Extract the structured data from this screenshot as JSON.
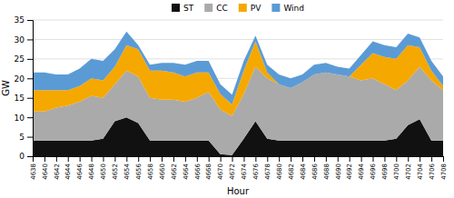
{
  "chart_data": {
    "type": "area",
    "stacked": true,
    "x": [
      4638,
      4640,
      4642,
      4644,
      4646,
      4648,
      4650,
      4652,
      4654,
      4656,
      4658,
      4660,
      4662,
      4664,
      4666,
      4668,
      4670,
      4672,
      4674,
      4676,
      4678,
      4680,
      4682,
      4684,
      4686,
      4688,
      4690,
      4692,
      4694,
      4696,
      4698,
      4700,
      4702,
      4704,
      4706,
      4708
    ],
    "series": [
      {
        "name": "ST",
        "color": "#111111",
        "values": [
          4.0,
          4.0,
          4.0,
          4.0,
          4.0,
          4.0,
          4.5,
          9.0,
          10.0,
          8.5,
          4.0,
          4.0,
          4.0,
          4.0,
          4.0,
          4.0,
          0.5,
          0.3,
          4.5,
          9.0,
          4.5,
          4.0,
          4.0,
          4.0,
          4.0,
          4.0,
          4.0,
          4.0,
          4.0,
          4.0,
          4.0,
          4.5,
          8.0,
          9.5,
          4.0,
          4.0
        ]
      },
      {
        "name": "CC",
        "color": "#aaaaaa",
        "values": [
          7.5,
          7.5,
          8.5,
          9.0,
          10.0,
          11.5,
          10.5,
          9.5,
          12.0,
          12.0,
          11.0,
          10.5,
          10.5,
          10.0,
          11.0,
          12.5,
          11.5,
          10.0,
          11.5,
          14.0,
          15.5,
          14.5,
          13.5,
          15.0,
          17.0,
          17.5,
          17.0,
          16.5,
          15.5,
          16.0,
          14.5,
          12.5,
          11.5,
          13.5,
          15.5,
          13.0
        ]
      },
      {
        "name": "PV",
        "color": "#f5a800",
        "values": [
          5.5,
          5.5,
          4.5,
          4.0,
          4.0,
          4.5,
          4.5,
          4.5,
          6.5,
          7.0,
          7.0,
          7.5,
          7.0,
          6.5,
          6.5,
          5.0,
          4.0,
          3.0,
          6.0,
          6.5,
          1.5,
          0.0,
          0.0,
          0.0,
          0.0,
          0.0,
          0.0,
          0.0,
          4.0,
          6.5,
          7.0,
          8.0,
          9.0,
          5.0,
          2.5,
          1.0
        ]
      },
      {
        "name": "Wind",
        "color": "#5b9bd5",
        "values": [
          4.5,
          4.5,
          4.0,
          4.0,
          4.5,
          5.0,
          5.0,
          4.5,
          3.5,
          1.0,
          1.5,
          2.0,
          2.5,
          3.0,
          3.0,
          3.0,
          2.5,
          2.5,
          2.5,
          1.5,
          2.0,
          2.5,
          2.5,
          2.0,
          2.5,
          2.5,
          2.0,
          2.0,
          2.5,
          3.0,
          3.0,
          3.0,
          3.0,
          2.5,
          2.5,
          2.5
        ]
      }
    ],
    "xlabel": "Hour",
    "ylabel": "GW",
    "xlim": [
      4638,
      4708
    ],
    "xticks": [
      4638,
      4640,
      4642,
      4644,
      4646,
      4648,
      4650,
      4652,
      4654,
      4656,
      4658,
      4660,
      4662,
      4664,
      4666,
      4668,
      4670,
      4672,
      4674,
      4676,
      4678,
      4680,
      4682,
      4684,
      4686,
      4688,
      4690,
      4692,
      4694,
      4696,
      4698,
      4700,
      4702,
      4704,
      4706,
      4708
    ],
    "ylim": [
      0,
      35
    ],
    "yticks": [
      0,
      5,
      10,
      15,
      20,
      25,
      30,
      35
    ],
    "grid": true,
    "legend": "top"
  }
}
